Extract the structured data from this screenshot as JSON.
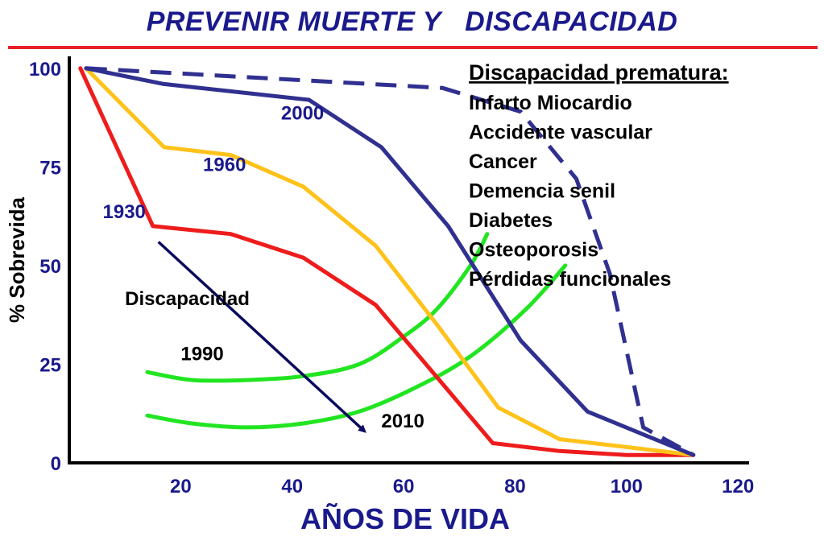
{
  "title": "PREVENIR MUERTE Y   DISCAPACIDAD",
  "colors": {
    "title": "#1a1a8c",
    "title_rule": "#e8202a",
    "axis_text": "#1a1a8c",
    "arrow": "#0b0b5e",
    "disability_curve": "#22e522"
  },
  "chart_data": {
    "type": "line",
    "xlabel": "AÑOS DE VIDA",
    "ylabel": "% Sobrevida",
    "xlim": [
      0,
      122
    ],
    "ylim": [
      0,
      102
    ],
    "xticks": [
      20,
      40,
      60,
      80,
      100,
      120
    ],
    "yticks": [
      0,
      25,
      50,
      75,
      100
    ],
    "grid": false,
    "series": [
      {
        "name": "1930",
        "color": "#ee1c1c",
        "dashed": false,
        "x": [
          2,
          15,
          29,
          42,
          55,
          76,
          88,
          100,
          112
        ],
        "y": [
          100,
          60,
          58,
          52,
          40,
          5,
          3,
          2,
          2
        ]
      },
      {
        "name": "1960",
        "color": "#ffc21a",
        "dashed": false,
        "x": [
          3,
          17,
          29,
          42,
          55,
          66,
          77,
          88,
          100,
          112
        ],
        "y": [
          100,
          80,
          78,
          70,
          55,
          35,
          14,
          6,
          4,
          2
        ]
      },
      {
        "name": "2000",
        "color": "#303090",
        "dashed": false,
        "x": [
          3,
          17,
          43,
          56,
          68,
          81,
          93,
          112
        ],
        "y": [
          100,
          96,
          92,
          80,
          60,
          31,
          13,
          2
        ]
      },
      {
        "name": "",
        "color": "#303090",
        "dashed": true,
        "x": [
          3,
          67,
          81,
          91,
          97,
          103,
          112
        ],
        "y": [
          100,
          95,
          89,
          72,
          48,
          9,
          2
        ]
      }
    ],
    "series_labels": [
      {
        "text": "2000",
        "x": 38,
        "y": 87
      },
      {
        "text": "1960",
        "x": 24,
        "y": 74
      },
      {
        "text": "1930",
        "x": 6,
        "y": 62
      }
    ],
    "disability_curves": [
      {
        "label": "1990",
        "x": [
          14,
          22,
          32,
          42,
          52,
          60,
          66,
          72,
          75
        ],
        "y": [
          23,
          21,
          21,
          22,
          25,
          32,
          39,
          50,
          58
        ]
      },
      {
        "label": "2010",
        "x": [
          14,
          22,
          32,
          42,
          52,
          62,
          72,
          82,
          89
        ],
        "y": [
          12,
          10,
          9,
          10,
          13,
          19,
          27,
          39,
          50
        ]
      }
    ],
    "annotations": [
      {
        "text": "Discapacidad",
        "x": 10,
        "y": 40
      },
      {
        "text": "1990",
        "x": 20,
        "y": 26
      },
      {
        "text": "2010",
        "x": 56,
        "y": 9
      }
    ],
    "arrow": {
      "from": [
        16,
        56
      ],
      "to": [
        53,
        8
      ]
    },
    "legend_box": {
      "heading": "Discapacidad prematura:",
      "items": [
        "Infarto Miocardio",
        "Accidente vascular",
        "Cancer",
        "Demencia senil",
        "Diabetes",
        "Osteoporosis",
        "Pérdidas funcionales"
      ]
    }
  }
}
